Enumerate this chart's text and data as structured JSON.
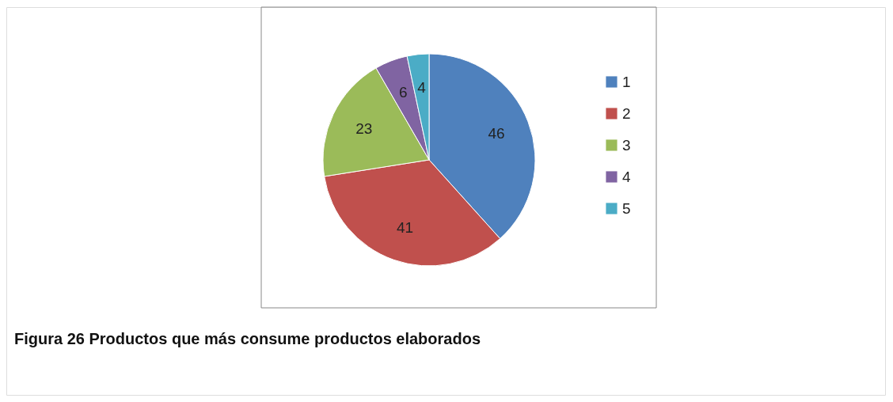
{
  "chart_data": {
    "type": "pie",
    "categories": [
      "1",
      "2",
      "3",
      "4",
      "5"
    ],
    "values": [
      46,
      41,
      23,
      6,
      4
    ],
    "colors": [
      "#4f81bd",
      "#c0504d",
      "#9bbb59",
      "#8064a2",
      "#4bacc6"
    ],
    "data_labels": true,
    "legend": "right",
    "annotations": [
      "Figura 26 Productos que más consume productos  elaborados"
    ]
  }
}
